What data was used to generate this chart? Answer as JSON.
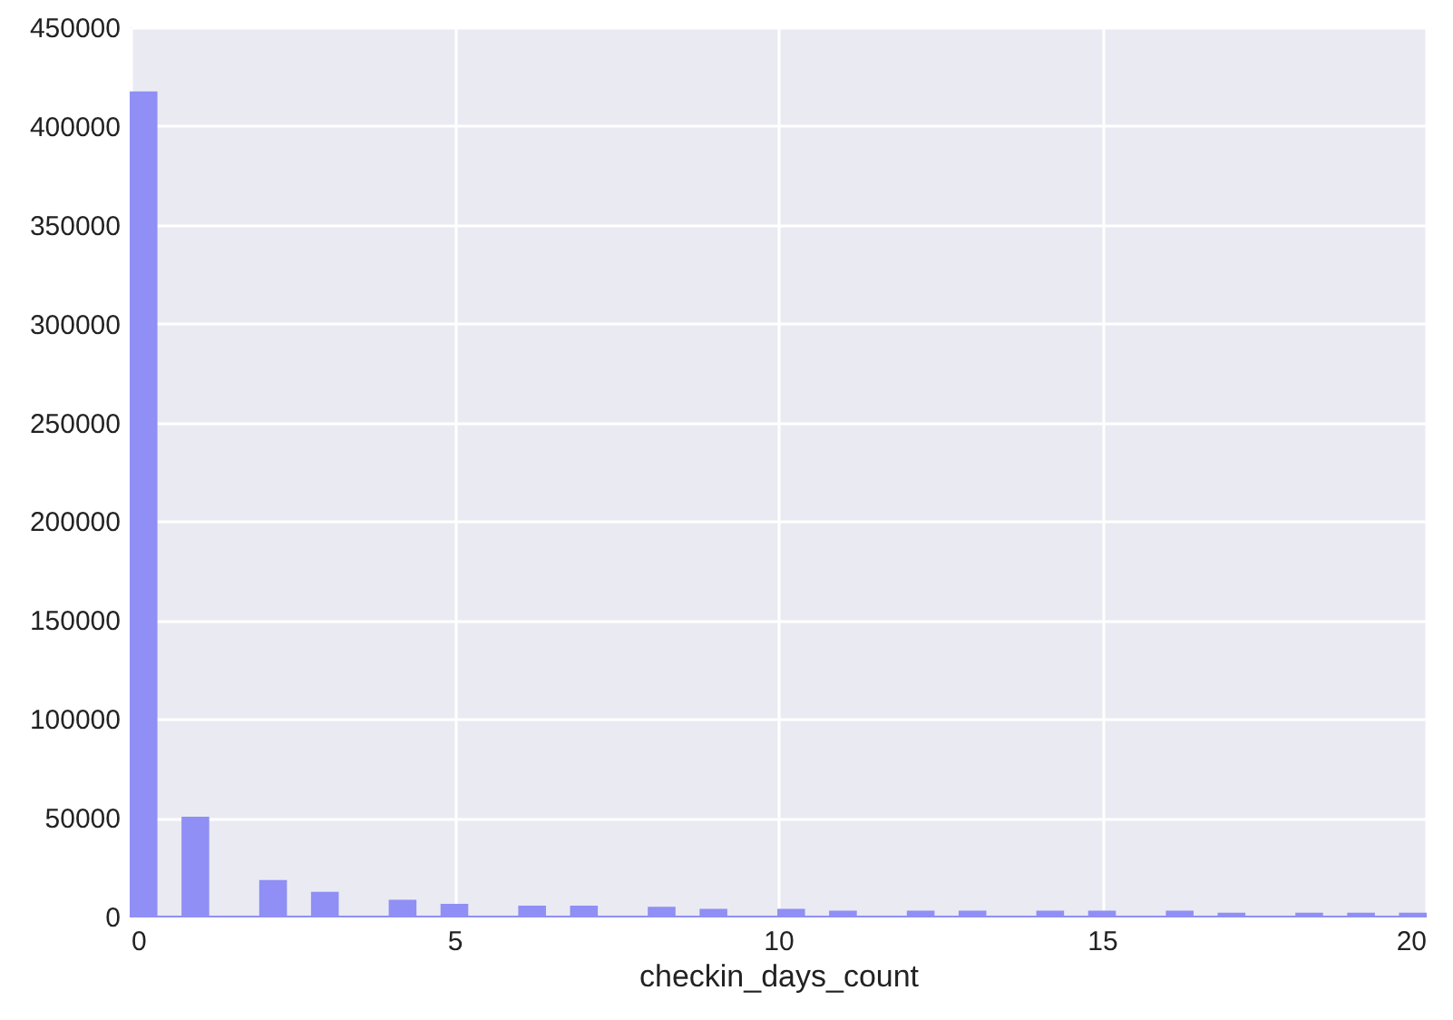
{
  "chart_data": {
    "type": "histogram",
    "xlabel": "checkin_days_count",
    "bins": [
      0,
      0.4,
      0.8,
      1.2,
      2,
      2.4,
      2.8,
      3.2,
      4,
      4.4,
      4.8,
      5.2,
      6,
      6.4,
      6.8,
      7.2,
      8,
      8.4,
      8.8,
      9.2,
      10,
      10.4,
      10.8,
      11.2,
      12,
      12.4,
      12.8,
      13.2,
      14,
      14.4,
      14.8,
      15.2,
      16,
      16.4,
      16.8,
      17.2,
      18,
      18.4,
      18.8,
      19.2,
      19.6,
      20
    ],
    "values": [
      417000,
      0,
      50000,
      0,
      18000,
      0,
      12000,
      0,
      8000,
      0,
      6000,
      0,
      5000,
      0,
      5000,
      0,
      4500,
      0,
      3500,
      0,
      3500,
      0,
      2500,
      0,
      2500,
      0,
      2500,
      0,
      2500,
      0,
      2500,
      0,
      2500,
      0,
      1500,
      0,
      1500,
      0,
      1500,
      0,
      1500
    ],
    "color": "#8f8ff5",
    "xlim": [
      0,
      20
    ],
    "xticks": [
      0,
      5,
      10,
      15,
      20
    ],
    "ylim": [
      0,
      450000
    ],
    "yticks": [
      0,
      50000,
      100000,
      150000,
      200000,
      250000,
      300000,
      350000,
      400000,
      450000
    ],
    "grid": true
  }
}
